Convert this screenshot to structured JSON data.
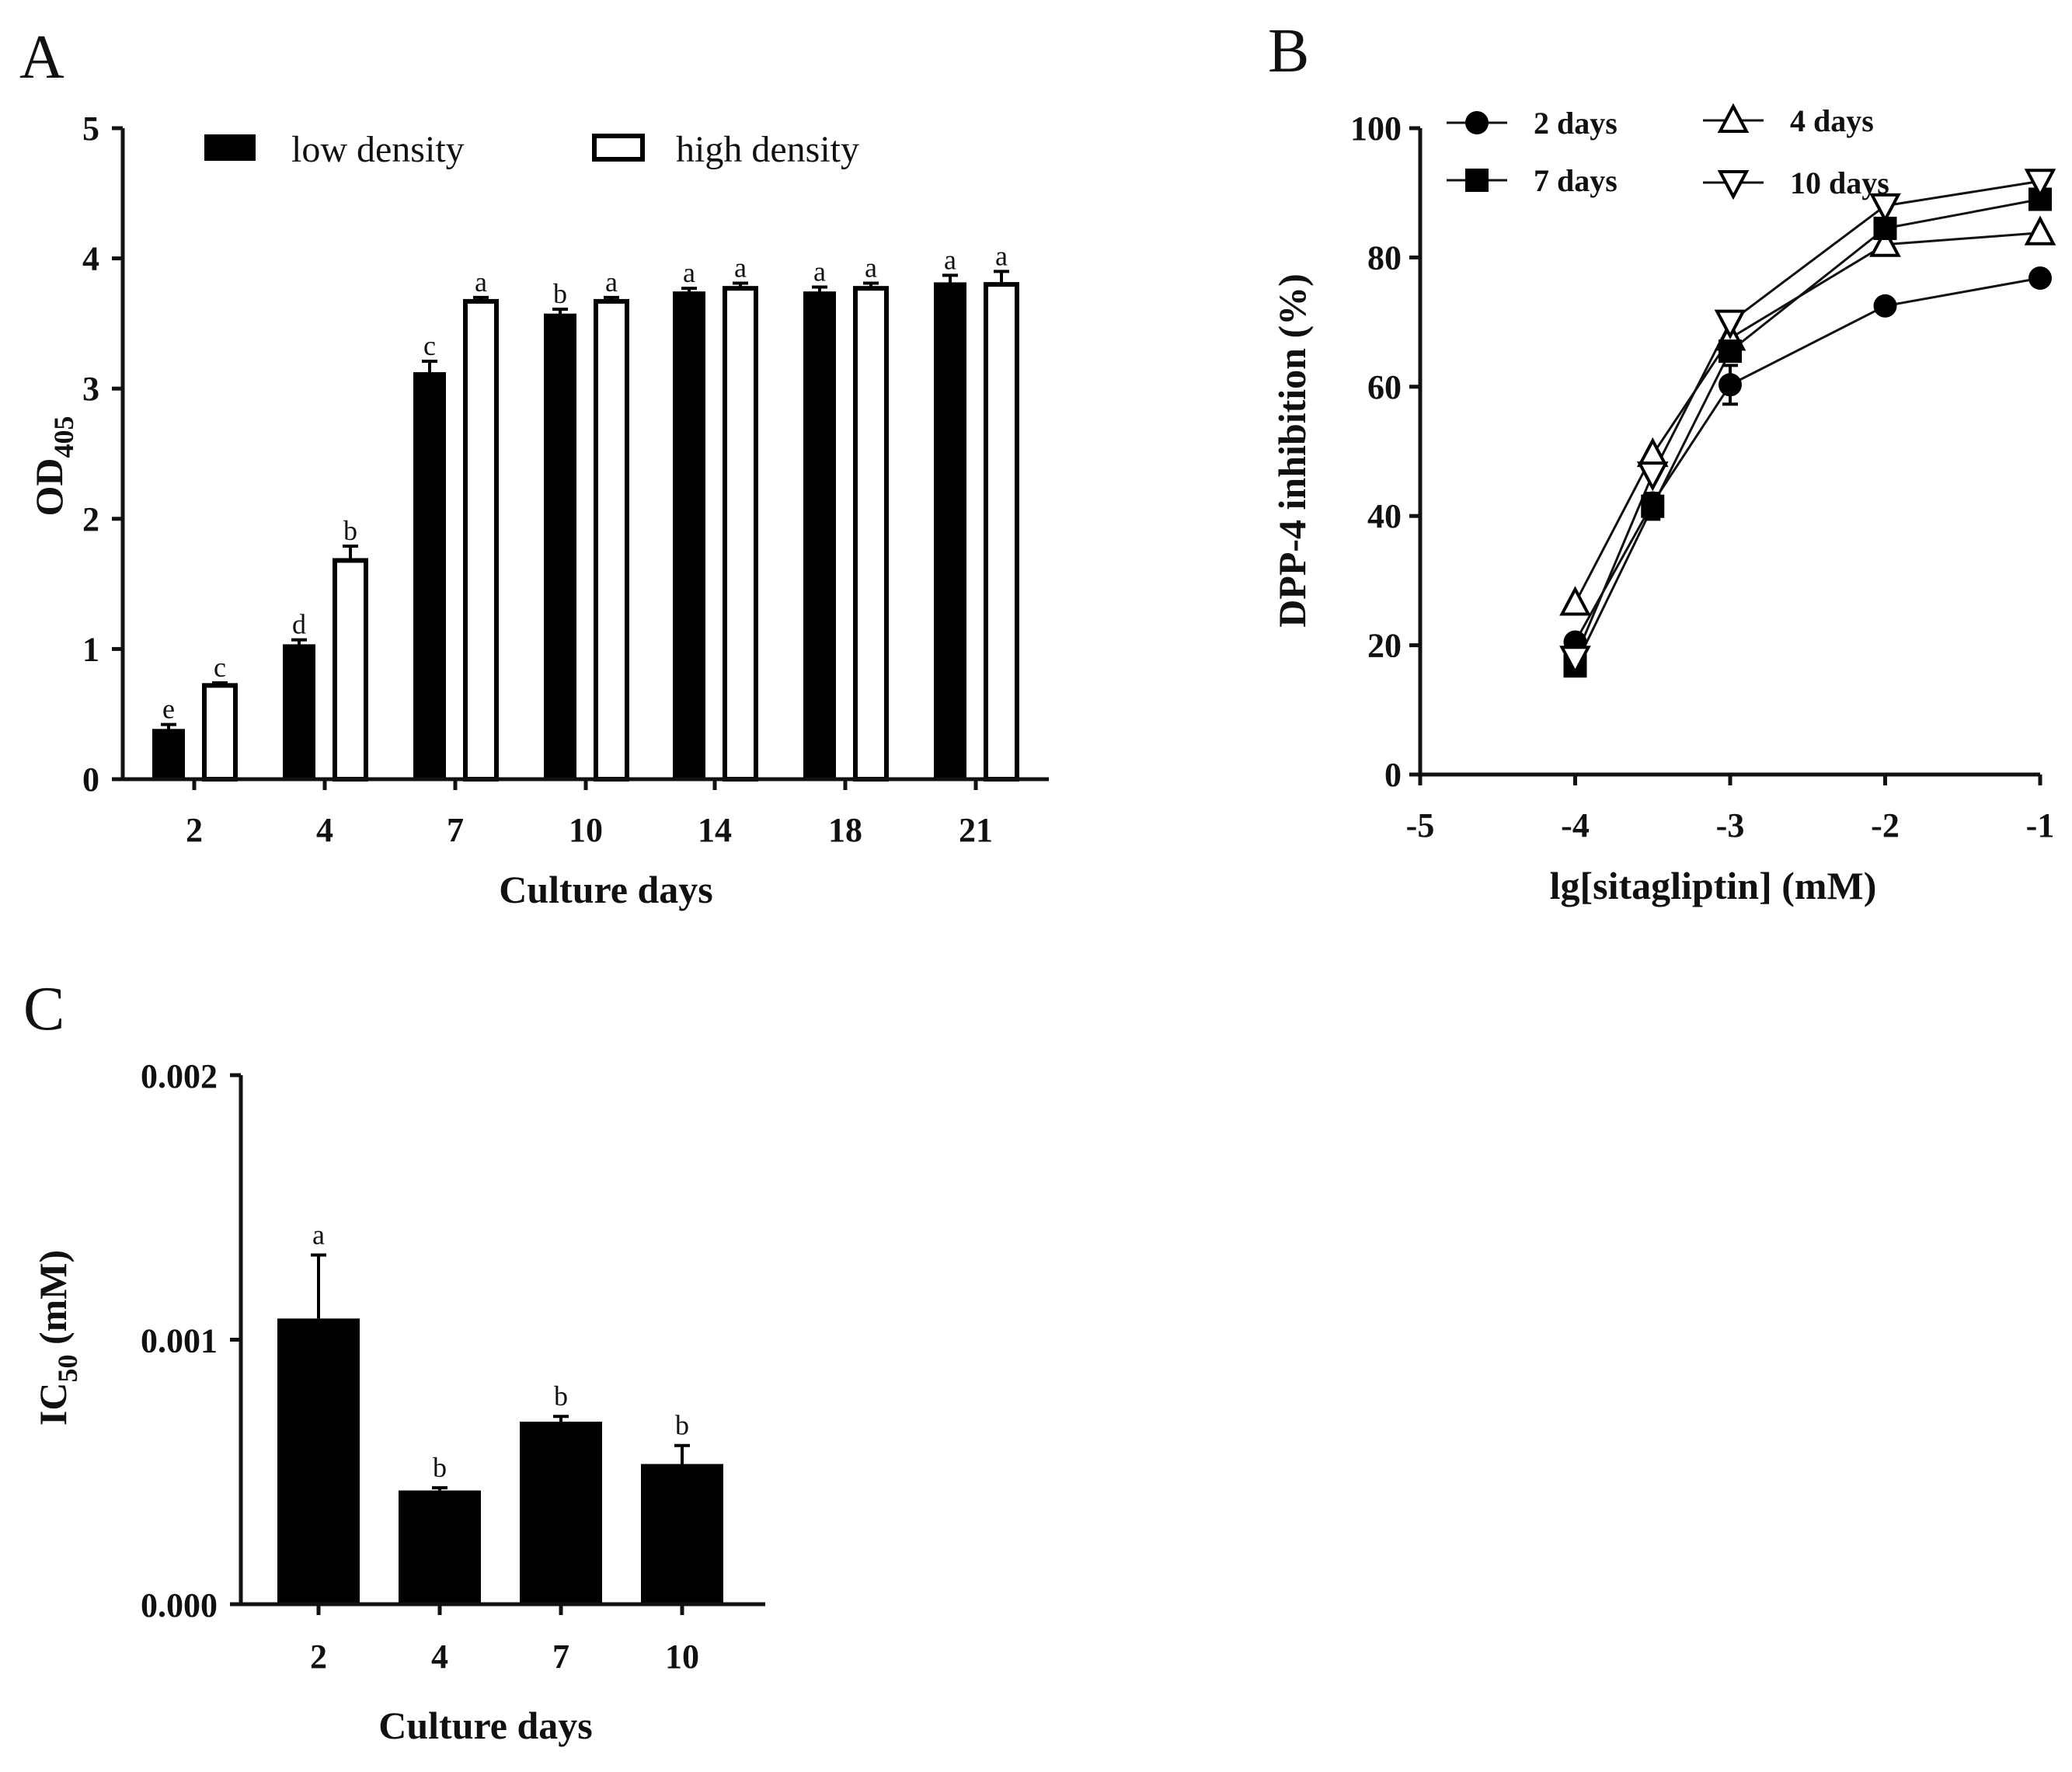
{
  "panels": {
    "a": "A",
    "b": "B",
    "c": "C"
  },
  "chart_data": [
    {
      "type": "bar",
      "panel": "A",
      "title": "",
      "xlabel": "Culture days",
      "ylabel_main": "OD",
      "ylabel_sub": "405",
      "ylim": [
        0,
        5
      ],
      "yticks": [
        "0",
        "1",
        "2",
        "3",
        "4",
        "5"
      ],
      "categories": [
        "2",
        "4",
        "7",
        "10",
        "14",
        "18",
        "21"
      ],
      "series": [
        {
          "name": "low density",
          "fill": "#000000",
          "values": [
            0.38,
            1.03,
            3.12,
            3.57,
            3.74,
            3.74,
            3.81
          ],
          "errors": [
            0.04,
            0.04,
            0.09,
            0.04,
            0.03,
            0.04,
            0.06
          ],
          "labels": [
            "e",
            "d",
            "c",
            "b",
            "a",
            "a",
            "a"
          ]
        },
        {
          "name": "high density",
          "fill": "#ffffff",
          "values": [
            0.72,
            1.68,
            3.67,
            3.67,
            3.77,
            3.77,
            3.8
          ],
          "errors": [
            0.02,
            0.11,
            0.03,
            0.03,
            0.04,
            0.04,
            0.1
          ],
          "labels": [
            "c",
            "b",
            "a",
            "a",
            "a",
            "a",
            "a"
          ]
        }
      ],
      "legend": "top"
    },
    {
      "type": "line",
      "panel": "B",
      "xlabel": "lg[sitagliptin] (mM)",
      "ylabel": "DPP-4 inhibition (%)",
      "xlim": [
        -5,
        -1
      ],
      "ylim": [
        0,
        100
      ],
      "xticks": [
        "-5",
        "-4",
        "-3",
        "-2",
        "-1"
      ],
      "yticks": [
        "0",
        "20",
        "40",
        "60",
        "80",
        "100"
      ],
      "x": [
        -4,
        -3.5,
        -3,
        -2,
        -1
      ],
      "series": [
        {
          "name": "2 days",
          "marker": "circle",
          "values": [
            20.5,
            42,
            60.3,
            72.5,
            76.8
          ],
          "errors": [
            0,
            1.5,
            3,
            0,
            0
          ]
        },
        {
          "name": "4 days",
          "marker": "triangle-up",
          "values": [
            26.5,
            49.5,
            67.5,
            82,
            83.8
          ],
          "errors": [
            0,
            0,
            0,
            0,
            0
          ]
        },
        {
          "name": "7 days",
          "marker": "square",
          "values": [
            16.8,
            41.5,
            65.5,
            84.5,
            89
          ],
          "errors": [
            0,
            2,
            0,
            0,
            0
          ]
        },
        {
          "name": "10 days",
          "marker": "triangle-down",
          "values": [
            18,
            46.5,
            70,
            88,
            91.8
          ],
          "errors": [
            0,
            0,
            0,
            0,
            0
          ]
        }
      ],
      "legend": "top-left"
    },
    {
      "type": "bar",
      "panel": "C",
      "xlabel": "Culture days",
      "ylabel_main": "IC",
      "ylabel_sub": "50",
      "ylabel_tail": " (mM)",
      "ylim": [
        0,
        0.002
      ],
      "yticks": [
        "0.000",
        "0.001",
        "0.002"
      ],
      "categories": [
        "2",
        "4",
        "7",
        "10"
      ],
      "values": [
        0.00108,
        0.00043,
        0.00069,
        0.00053
      ],
      "errors": [
        0.00024,
        1e-05,
        2e-05,
        7e-05
      ],
      "labels": [
        "a",
        "b",
        "b",
        "b"
      ]
    }
  ]
}
